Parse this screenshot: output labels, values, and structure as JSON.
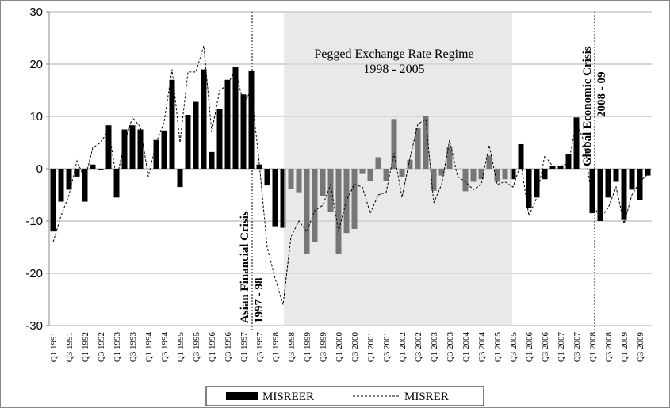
{
  "chart_data": {
    "type": "bar_line",
    "categories": [
      "Q1 1991",
      null,
      "Q3 1991",
      null,
      "Q1 1992",
      null,
      "Q3 1992",
      null,
      "Q1 1993",
      null,
      "Q3 1993",
      null,
      "Q1 1994",
      null,
      "Q3 1994",
      null,
      "Q1 1995",
      null,
      "Q3 1995",
      null,
      "Q1 1996",
      null,
      "Q3 1996",
      null,
      "Q1 1997",
      null,
      "Q3 1997",
      null,
      "Q1 1998",
      null,
      "Q3 1998",
      null,
      "Q1 1999",
      null,
      "Q3 1999",
      null,
      "Q1 2000",
      null,
      "Q3 2000",
      null,
      "Q1 2001",
      null,
      "Q3 2001",
      null,
      "Q1 2002",
      null,
      "Q3 2002",
      null,
      "Q1 2003",
      null,
      "Q3 2003",
      null,
      "Q1 2004",
      null,
      "Q3 2004",
      null,
      "Q1 2005",
      null,
      "Q3 2005",
      null,
      "Q1 2006",
      null,
      "Q3 2006",
      null,
      "Q1 2007",
      null,
      "Q3 2007",
      null,
      "Q1 2008",
      null,
      "Q3 2008",
      null,
      "Q1 2009",
      null,
      "Q3 2009",
      null
    ],
    "series": [
      {
        "name": "MISREER",
        "color": "#000000",
        "style": "bar",
        "values": [
          -12,
          -6.3,
          -4,
          -1.5,
          -6.3,
          0.8,
          -0.3,
          8.3,
          -5.5,
          7.5,
          8.3,
          7.5,
          0,
          5.5,
          7.3,
          17,
          -3.5,
          10.3,
          12.8,
          19,
          3.2,
          11.5,
          17,
          19.5,
          14.2,
          18.8,
          0.8,
          -3.2,
          -11,
          -11.3,
          -3.8,
          -4.5,
          -16.2,
          -14,
          -5.3,
          -8.3,
          -16.3,
          -12.3,
          -11.5,
          -1,
          -2.3,
          2.2,
          -2.3,
          9.5,
          -1.5,
          1.7,
          7.8,
          10,
          -4.2,
          -1.3,
          4.2,
          0,
          -4.3,
          -2.5,
          -2,
          2.5,
          -2.5,
          -2,
          -2,
          4.7,
          -7.5,
          -5.5,
          -2,
          0.5,
          0.5,
          2.8,
          9.8,
          0,
          -8.5,
          -10,
          -5.5,
          -2.5,
          -9.8,
          -4,
          -6,
          -1.3
        ]
      },
      {
        "name": "MISRER",
        "color": "#000000",
        "style": "dashed-line",
        "values": [
          -14,
          -9,
          -5,
          1.5,
          -2,
          4,
          5,
          7.5,
          -2,
          5,
          9.8,
          8,
          -1.5,
          5,
          9,
          19,
          5,
          18.5,
          18.5,
          23.5,
          7,
          15,
          16,
          19,
          12.5,
          15,
          1,
          -15,
          -21,
          -26,
          -13,
          -10,
          -12,
          -8,
          -7,
          -3,
          -12,
          -6,
          -3,
          -3.5,
          -8.5,
          -5,
          -4.5,
          3,
          -5.5,
          2,
          8.5,
          9.5,
          -6.5,
          -3,
          5.5,
          -1.5,
          -2.5,
          -4,
          -3,
          4.5,
          -3,
          -2.5,
          -3.5,
          1,
          -9,
          -5.5,
          2.5,
          0.5,
          0.5,
          1,
          9,
          5,
          -6.5,
          -9.5,
          -7.5,
          -3.5,
          -10.5,
          -5,
          -2.5,
          -1
        ]
      }
    ],
    "ylim": [
      -30,
      30
    ],
    "yticks": [
      -30,
      -20,
      -10,
      0,
      10,
      20,
      30
    ],
    "grid": true,
    "annotations": {
      "asian_crisis": [
        "Asian  Financial Crisis",
        "1997 - 98"
      ],
      "pegged": [
        "Pegged Exchange Rate Regime",
        "1998 - 2005"
      ],
      "global_crisis": [
        "Global Economic Crisis",
        "2008 - 09"
      ]
    }
  }
}
